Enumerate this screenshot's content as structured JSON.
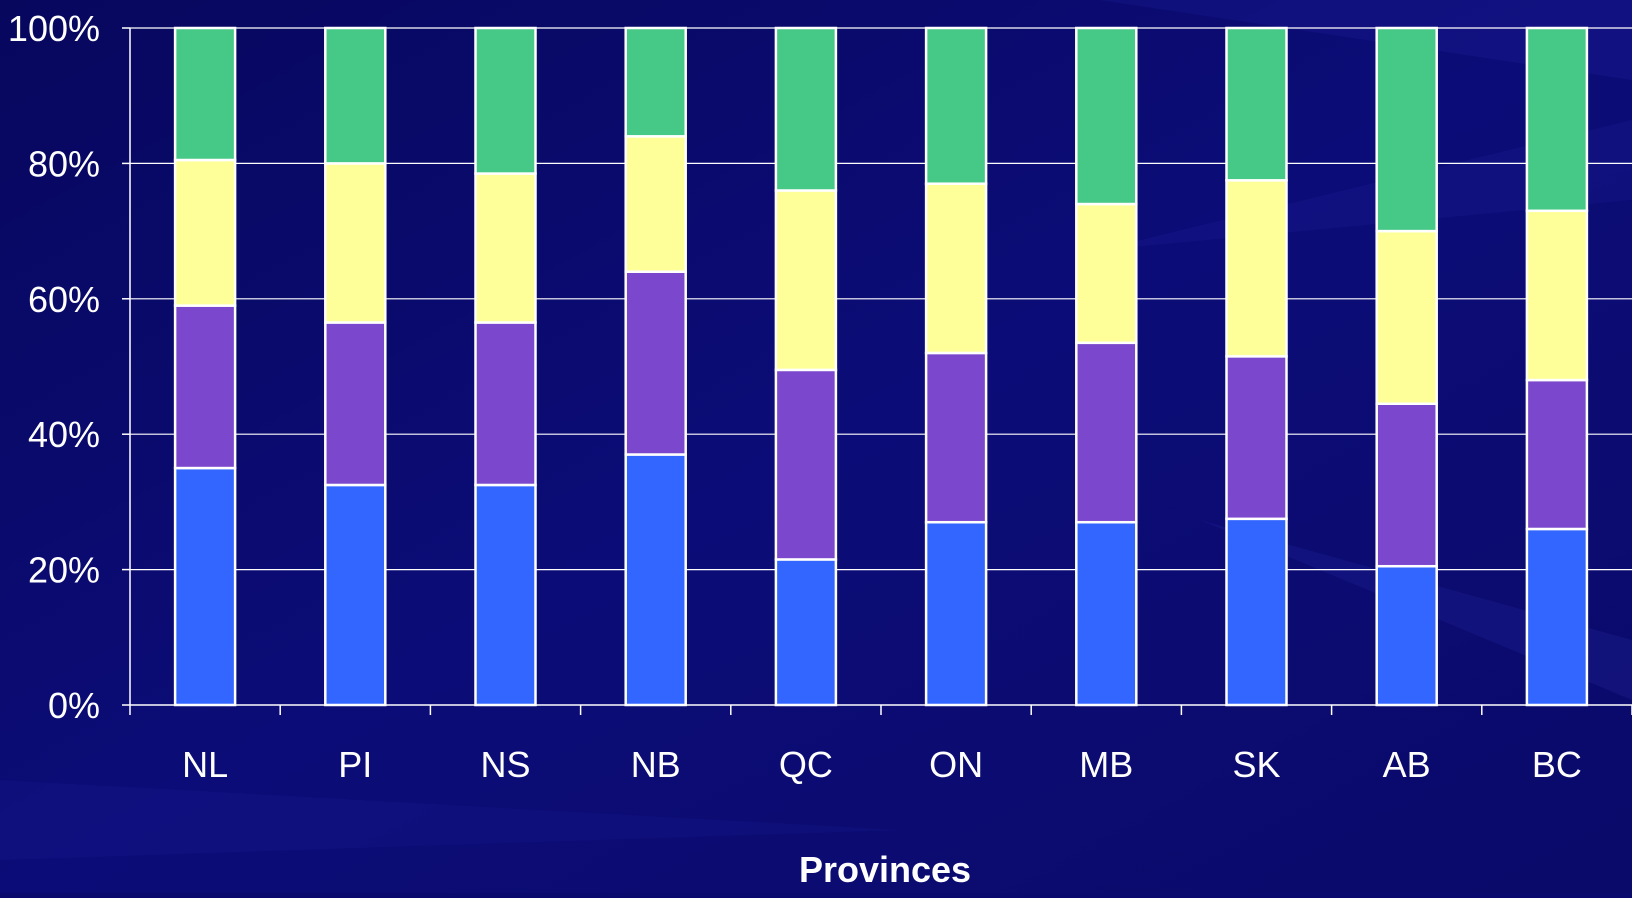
{
  "chart_data": {
    "type": "bar",
    "stacked": true,
    "percent": true,
    "title": "",
    "xlabel": "Provinces",
    "ylabel": "",
    "ylim": [
      0,
      100
    ],
    "yticks": [
      "0%",
      "20%",
      "40%",
      "60%",
      "80%",
      "100%"
    ],
    "grid": true,
    "categories": [
      "NL",
      "PI",
      "NS",
      "NB",
      "QC",
      "ON",
      "MB",
      "SK",
      "AB",
      "BC"
    ],
    "series": [
      {
        "color": "#3366ff",
        "values": [
          35,
          32.5,
          32.5,
          37,
          21.5,
          27,
          27,
          27.5,
          20.5,
          26
        ]
      },
      {
        "color": "#7b47cc",
        "values": [
          24,
          24,
          24,
          27,
          28,
          25,
          26.5,
          24,
          24,
          22
        ]
      },
      {
        "color": "#ffff99",
        "values": [
          21.5,
          23.5,
          22,
          20,
          26.5,
          25,
          20.5,
          26,
          25.5,
          25
        ]
      },
      {
        "color": "#46c887",
        "values": [
          19.5,
          20,
          21.5,
          16,
          24,
          23,
          26,
          22.5,
          30,
          27
        ]
      }
    ]
  },
  "colors": {
    "background": "#0a0a6e",
    "grid": "#ffffff",
    "text": "#ffffff",
    "bar_outline": "#ffffff"
  }
}
